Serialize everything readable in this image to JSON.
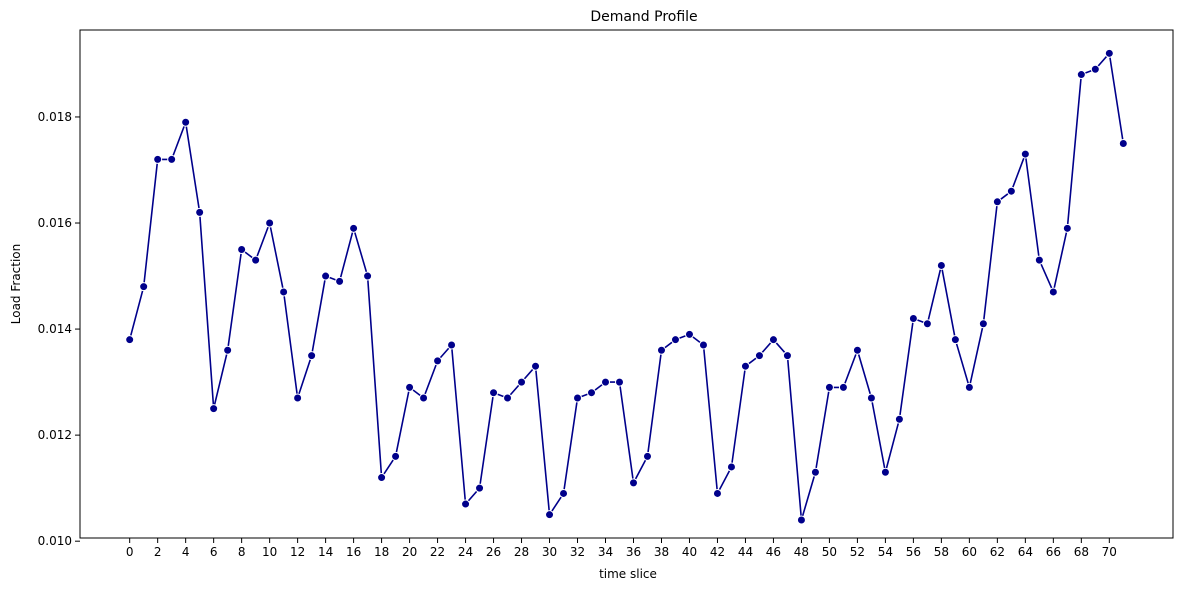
{
  "chart_data": {
    "type": "line",
    "title": "Demand Profile",
    "xlabel": "time slice",
    "ylabel": "Load Fraction",
    "x": [
      0,
      1,
      2,
      3,
      4,
      5,
      6,
      7,
      8,
      9,
      10,
      11,
      12,
      13,
      14,
      15,
      16,
      17,
      18,
      19,
      20,
      21,
      22,
      23,
      24,
      25,
      26,
      27,
      28,
      29,
      30,
      31,
      32,
      33,
      34,
      35,
      36,
      37,
      38,
      39,
      40,
      41,
      42,
      43,
      44,
      45,
      46,
      47,
      48,
      49,
      50,
      51,
      52,
      53,
      54,
      55,
      56,
      57,
      58,
      59,
      60,
      61,
      62,
      63,
      64,
      65,
      66,
      67,
      68,
      69,
      70,
      71
    ],
    "series": [
      {
        "values": [
          0.0138,
          0.0148,
          0.0172,
          0.0172,
          0.0179,
          0.0162,
          0.0125,
          0.0136,
          0.0155,
          0.0153,
          0.016,
          0.0147,
          0.0127,
          0.0135,
          0.015,
          0.0149,
          0.0159,
          0.015,
          0.0112,
          0.0116,
          0.0129,
          0.0127,
          0.0134,
          0.0137,
          0.0107,
          0.011,
          0.0128,
          0.0127,
          0.013,
          0.0133,
          0.0105,
          0.0109,
          0.0127,
          0.0128,
          0.013,
          0.013,
          0.0111,
          0.0116,
          0.0136,
          0.0138,
          0.0139,
          0.0137,
          0.0109,
          0.0114,
          0.0133,
          0.0135,
          0.0138,
          0.0135,
          0.0104,
          0.0113,
          0.0129,
          0.0129,
          0.0136,
          0.0127,
          0.0113,
          0.0123,
          0.0142,
          0.0141,
          0.0152,
          0.0138,
          0.0129,
          0.0141,
          0.0164,
          0.0166,
          0.0173,
          0.0153,
          0.0147,
          0.0159,
          0.0188,
          0.0189,
          0.0192,
          0.0175
        ],
        "color": "#00008b",
        "marker": "circle"
      }
    ],
    "xticks": [
      "0",
      "2",
      "4",
      "6",
      "8",
      "10",
      "12",
      "14",
      "16",
      "18",
      "20",
      "22",
      "24",
      "26",
      "28",
      "30",
      "32",
      "34",
      "36",
      "38",
      "40",
      "42",
      "44",
      "46",
      "48",
      "50",
      "52",
      "54",
      "56",
      "58",
      "60",
      "62",
      "64",
      "66",
      "68",
      "70"
    ],
    "yticks": [
      "0.010",
      "0.012",
      "0.014",
      "0.016",
      "0.018"
    ],
    "xlim": [
      -3.55,
      74.55
    ],
    "ylim": [
      0.01006,
      0.01964
    ],
    "grid": false,
    "legend": "none"
  }
}
